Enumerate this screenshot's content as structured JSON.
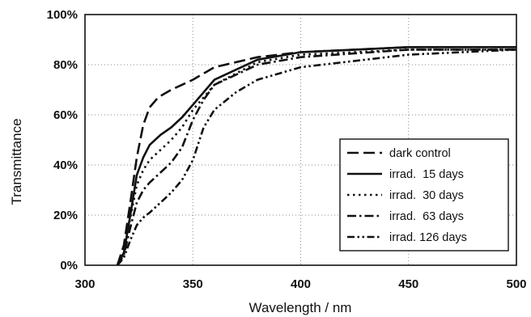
{
  "chart_data": {
    "type": "line",
    "xlabel": "Wavelength / nm",
    "ylabel": "Transmittance",
    "xlim": [
      300,
      500
    ],
    "ylim": [
      0,
      100
    ],
    "x_ticks": [
      "300",
      "350",
      "400",
      "450",
      "500"
    ],
    "y_ticks": [
      "0%",
      "20%",
      "40%",
      "60%",
      "80%",
      "100%"
    ],
    "grid": true,
    "legend_position": "bottom-right",
    "series": [
      {
        "name": "dark control",
        "line_style": "dashed",
        "x": [
          315,
          318,
          321,
          324,
          327,
          330,
          334,
          340,
          350,
          360,
          380,
          400,
          450,
          500
        ],
        "y": [
          0,
          8,
          25,
          43,
          56,
          63,
          67,
          70,
          74,
          79,
          83,
          85,
          87,
          87
        ]
      },
      {
        "name": "irrad.  15 days",
        "line_style": "solid",
        "x": [
          315,
          318,
          321,
          324,
          327,
          330,
          335,
          340,
          345,
          350,
          360,
          380,
          400,
          450,
          500
        ],
        "y": [
          0,
          5,
          20,
          36,
          43,
          48,
          52,
          55,
          59,
          64,
          74,
          82,
          85,
          87,
          87
        ]
      },
      {
        "name": "irrad.  30 days",
        "line_style": "dotted",
        "x": [
          315,
          318,
          321,
          324,
          327,
          330,
          335,
          340,
          345,
          350,
          360,
          380,
          400,
          450,
          500
        ],
        "y": [
          0,
          5,
          19,
          32,
          38,
          42,
          46,
          50,
          55,
          62,
          72,
          81,
          84,
          86,
          86
        ]
      },
      {
        "name": "irrad.  63 days",
        "line_style": "dashdot",
        "x": [
          315,
          318,
          321,
          324,
          327,
          330,
          335,
          340,
          345,
          350,
          355,
          360,
          380,
          400,
          450,
          500
        ],
        "y": [
          0,
          4,
          15,
          25,
          30,
          33,
          37,
          41,
          47,
          58,
          66,
          72,
          80,
          83,
          86,
          86
        ]
      },
      {
        "name": "irrad. 126 days",
        "line_style": "dashdotdot",
        "x": [
          315,
          318,
          321,
          324,
          327,
          330,
          335,
          340,
          345,
          350,
          355,
          360,
          370,
          380,
          400,
          450,
          500
        ],
        "y": [
          0,
          3,
          10,
          16,
          19,
          21,
          25,
          29,
          34,
          42,
          55,
          62,
          69,
          74,
          79,
          84,
          86
        ]
      }
    ]
  }
}
